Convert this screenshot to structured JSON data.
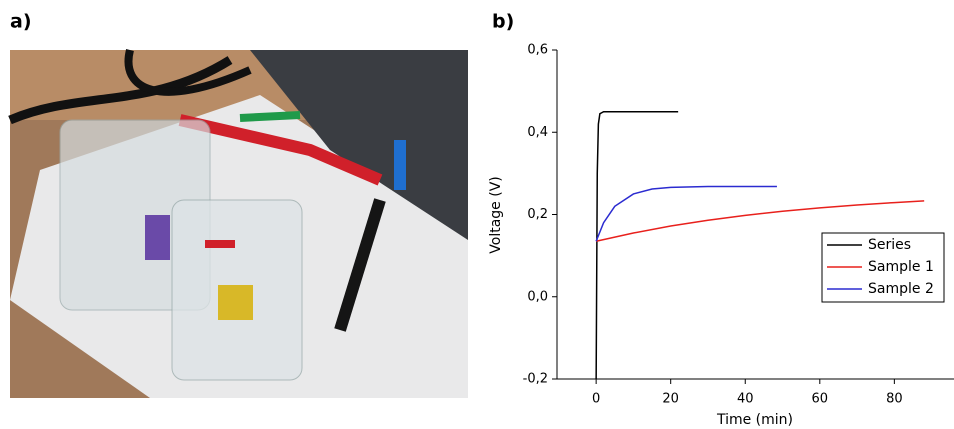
{
  "panel_a_label": "a)",
  "chart_data": {
    "type": "line",
    "panel_label": "b)",
    "x_label": "Time (min)",
    "y_label": "Voltage (V)",
    "xlim": [
      -10.5,
      96
    ],
    "xticks": [
      0,
      20,
      40,
      60,
      80
    ],
    "ylim": [
      -0.2,
      0.6
    ],
    "yticks": [
      {
        "value": -0.2,
        "label": "-0,2"
      },
      {
        "value": 0,
        "label": "0,0"
      },
      {
        "value": 0.2,
        "label": "0,2"
      },
      {
        "value": 0.4,
        "label": "0,4"
      },
      {
        "value": 0.6,
        "label": "0,6"
      }
    ],
    "legend": "right",
    "series": [
      {
        "name": "Series",
        "color": "#000000",
        "x": [
          0,
          0.3,
          0.6,
          1,
          2,
          5,
          10,
          22
        ],
        "values": [
          -0.2,
          0.3,
          0.42,
          0.445,
          0.45,
          0.45,
          0.45,
          0.45
        ]
      },
      {
        "name": "Sample 1",
        "color": "#e8201c",
        "x": [
          0,
          10,
          20,
          30,
          40,
          50,
          60,
          70,
          80,
          88
        ],
        "values": [
          0.135,
          0.155,
          0.172,
          0.186,
          0.198,
          0.208,
          0.216,
          0.223,
          0.229,
          0.233
        ]
      },
      {
        "name": "Sample 2",
        "color": "#2b2bd0",
        "x": [
          0,
          2,
          5,
          10,
          15,
          20,
          30,
          40,
          48.5
        ],
        "values": [
          0.135,
          0.18,
          0.22,
          0.25,
          0.262,
          0.266,
          0.268,
          0.268,
          0.268
        ]
      }
    ]
  }
}
